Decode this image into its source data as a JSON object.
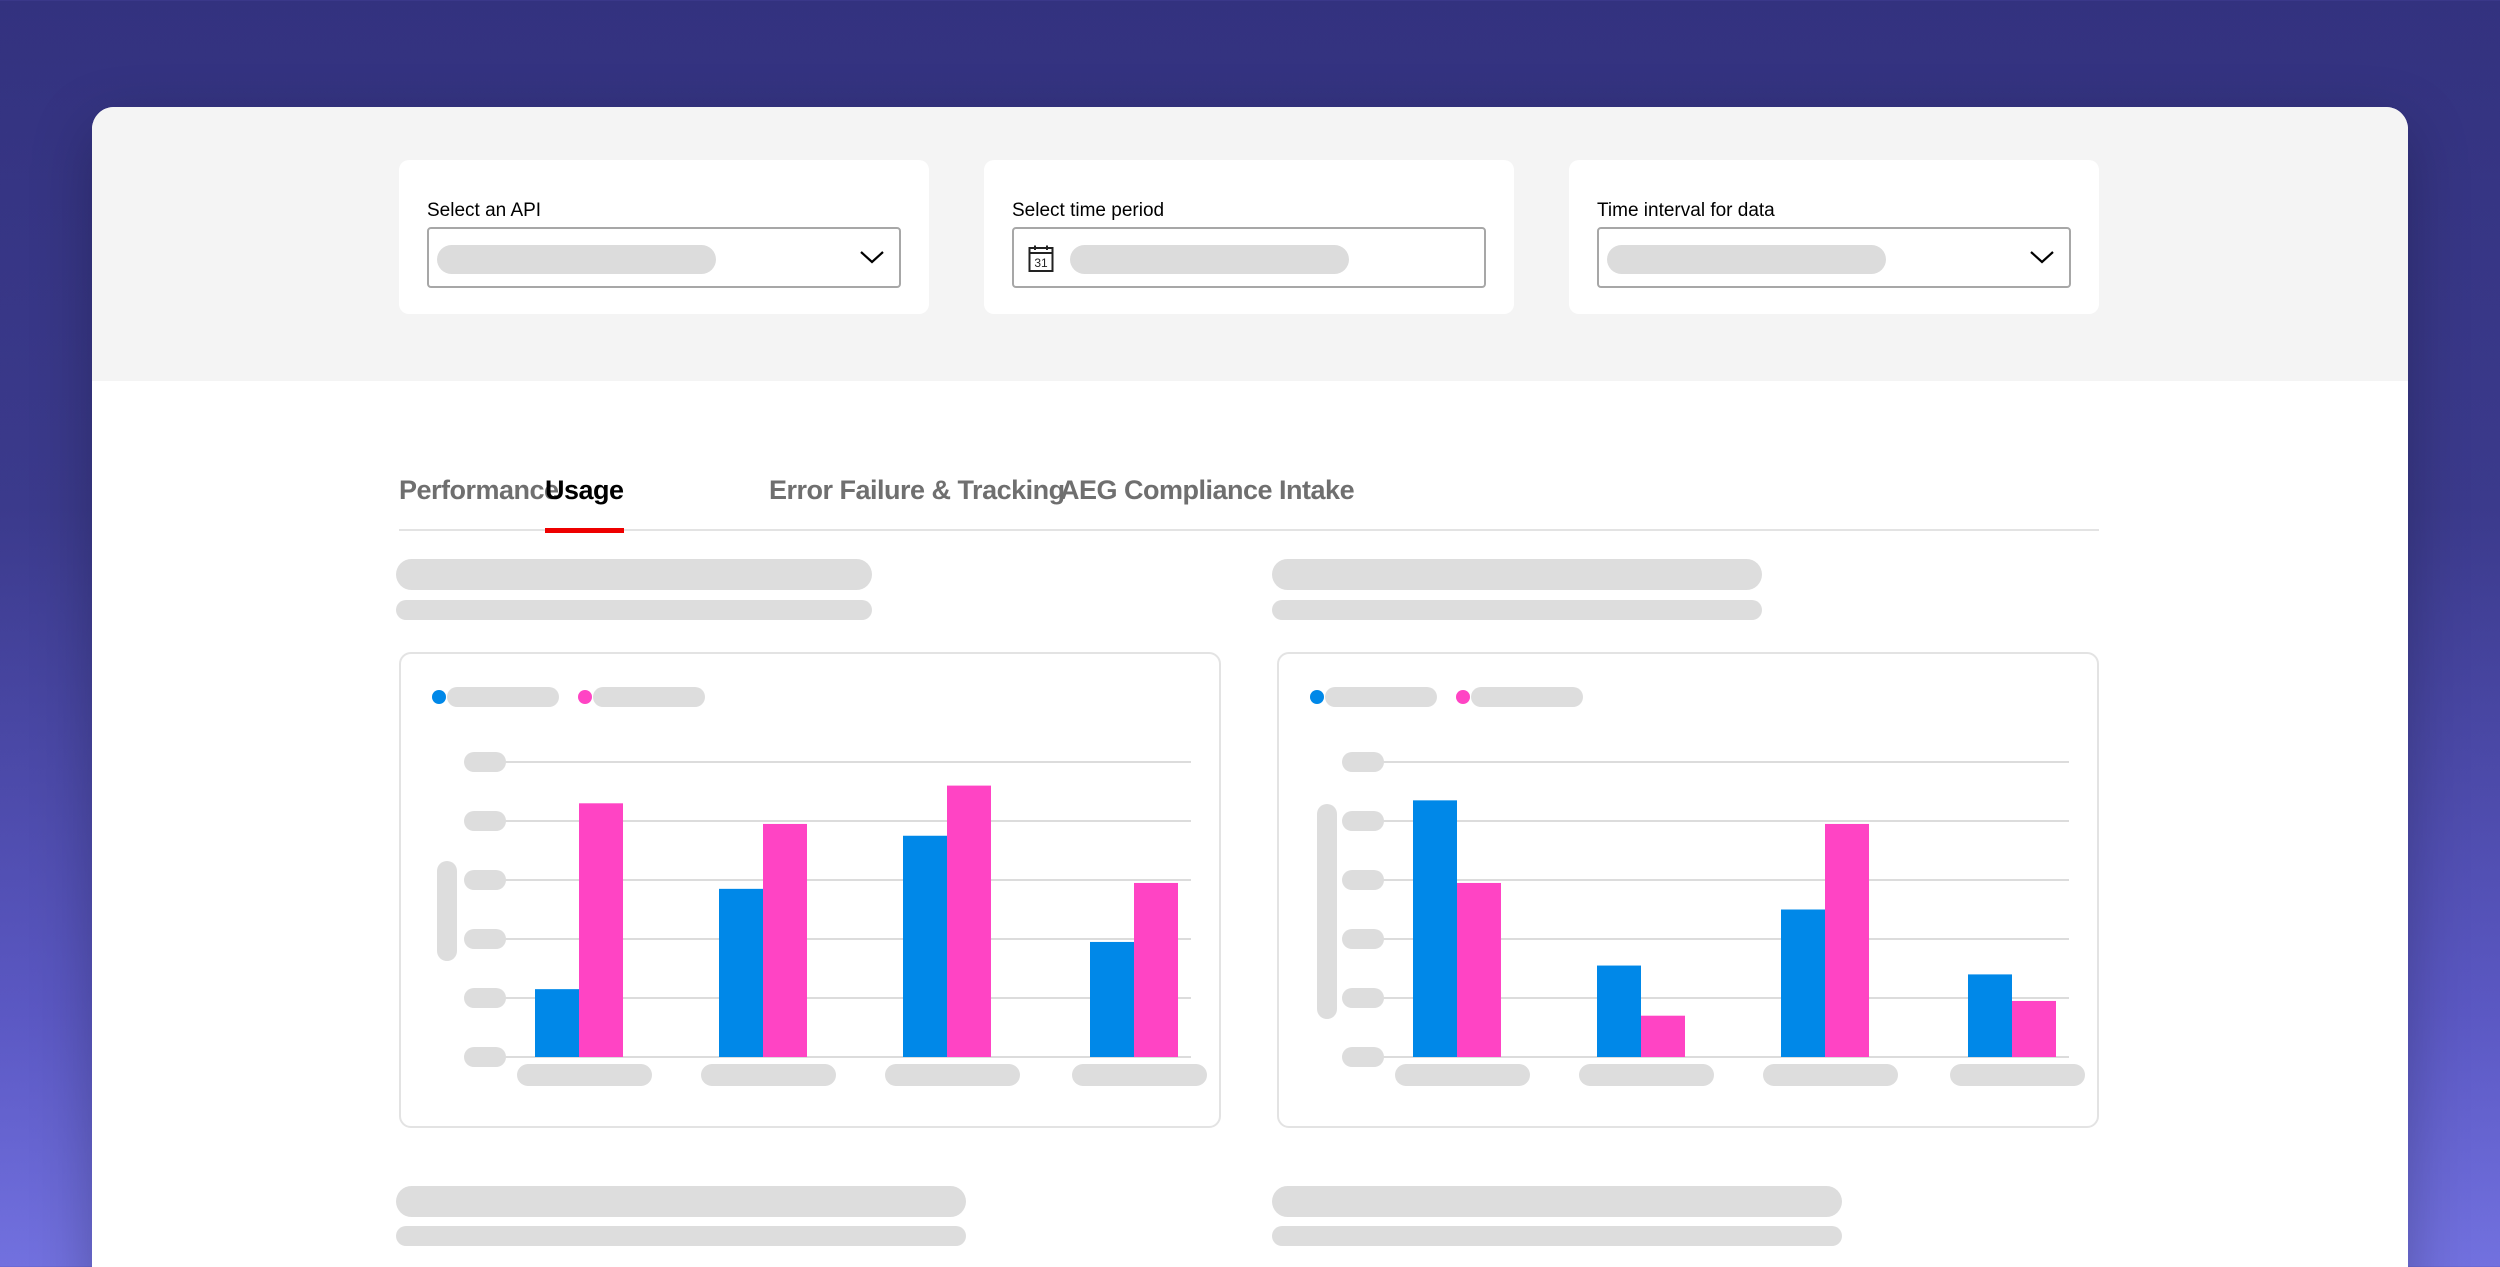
{
  "filters": {
    "api": {
      "label": "Select an API",
      "icon": "chevron-down-icon"
    },
    "period": {
      "label": "Select time period",
      "icon": "calendar-icon",
      "calendar_day": "31"
    },
    "interval": {
      "label": "Time interval for data",
      "icon": "chevron-down-icon"
    }
  },
  "tabs": [
    {
      "label": "Performance",
      "active": false
    },
    {
      "label": "Usage",
      "active": true
    },
    {
      "label": "Error Failure & Tracking",
      "active": false
    },
    {
      "label": "AEG Compliance Intake",
      "active": false
    }
  ],
  "colors": {
    "series_blue": "#0088e8",
    "series_pink": "#ff44c4",
    "tab_underline": "#ee0000"
  },
  "chart_data": [
    {
      "type": "bar",
      "title": "",
      "categories": [
        "",
        "",
        "",
        ""
      ],
      "ylim": [
        0,
        100
      ],
      "series": [
        {
          "name": "",
          "color": "#0088e8",
          "values": [
            23,
            57,
            75,
            39
          ]
        },
        {
          "name": "",
          "color": "#ff44c4",
          "values": [
            86,
            79,
            92,
            59
          ]
        }
      ]
    },
    {
      "type": "bar",
      "title": "",
      "categories": [
        "",
        "",
        "",
        ""
      ],
      "ylim": [
        0,
        100
      ],
      "series": [
        {
          "name": "",
          "color": "#0088e8",
          "values": [
            87,
            31,
            50,
            28
          ]
        },
        {
          "name": "",
          "color": "#ff44c4",
          "values": [
            59,
            14,
            79,
            19
          ]
        }
      ]
    }
  ]
}
